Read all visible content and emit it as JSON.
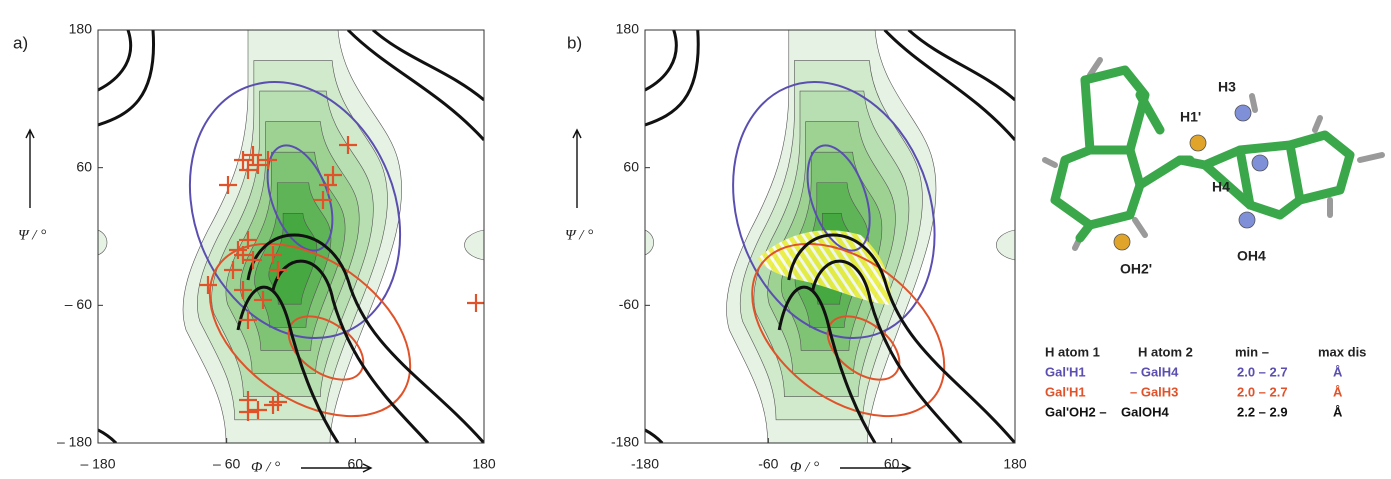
{
  "panels": [
    {
      "label": "a)",
      "x_ticks": [
        "– 180",
        "– 60",
        "60",
        "180"
      ],
      "y_ticks": [
        "180",
        "60",
        "– 60",
        "– 180"
      ],
      "x_label": "Φ / °",
      "y_label": "Ψ / °"
    },
    {
      "label": "b)",
      "x_ticks": [
        "-180",
        "-60",
        "60",
        "180"
      ],
      "y_ticks": [
        "180",
        "60",
        "-60",
        "-180"
      ],
      "x_label": "Φ / °",
      "y_label": "Ψ / °"
    }
  ],
  "molecule": {
    "labels": [
      "H3",
      "H1'",
      "H4",
      "OH2'",
      "OH4"
    ]
  },
  "table": {
    "header": [
      "H atom 1",
      "H atom 2",
      "min –",
      "max dis"
    ],
    "rows": [
      [
        "Gal'H1",
        "– GalH4",
        "2.0 – 2.7",
        "Å"
      ],
      [
        "Gal'H1",
        "– GalH3",
        "2.0 – 2.7",
        "Å"
      ],
      [
        "Gal'OH2 –",
        "GalOH4",
        "2.2 – 2.9",
        "Å"
      ]
    ]
  }
}
